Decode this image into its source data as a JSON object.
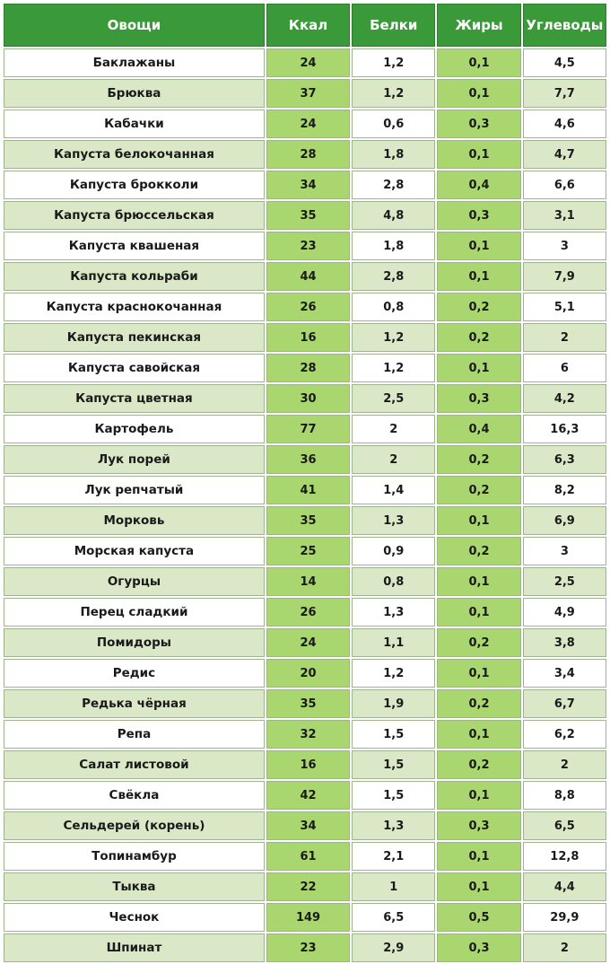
{
  "headers": [
    "Овощи",
    "Ккал",
    "Белки",
    "Жиры",
    "Углеводы"
  ],
  "rows": [
    [
      "Баклажаны",
      "24",
      "1,2",
      "0,1",
      "4,5"
    ],
    [
      "Брюква",
      "37",
      "1,2",
      "0,1",
      "7,7"
    ],
    [
      "Кабачки",
      "24",
      "0,6",
      "0,3",
      "4,6"
    ],
    [
      "Капуста белокочанная",
      "28",
      "1,8",
      "0,1",
      "4,7"
    ],
    [
      "Капуста брокколи",
      "34",
      "2,8",
      "0,4",
      "6,6"
    ],
    [
      "Капуста брюссельская",
      "35",
      "4,8",
      "0,3",
      "3,1"
    ],
    [
      "Капуста квашеная",
      "23",
      "1,8",
      "0,1",
      "3"
    ],
    [
      "Капуста кольраби",
      "44",
      "2,8",
      "0,1",
      "7,9"
    ],
    [
      "Капуста краснокочанная",
      "26",
      "0,8",
      "0,2",
      "5,1"
    ],
    [
      "Капуста пекинская",
      "16",
      "1,2",
      "0,2",
      "2"
    ],
    [
      "Капуста савойская",
      "28",
      "1,2",
      "0,1",
      "6"
    ],
    [
      "Капуста цветная",
      "30",
      "2,5",
      "0,3",
      "4,2"
    ],
    [
      "Картофель",
      "77",
      "2",
      "0,4",
      "16,3"
    ],
    [
      "Лук порей",
      "36",
      "2",
      "0,2",
      "6,3"
    ],
    [
      "Лук репчатый",
      "41",
      "1,4",
      "0,2",
      "8,2"
    ],
    [
      "Морковь",
      "35",
      "1,3",
      "0,1",
      "6,9"
    ],
    [
      "Морская капуста",
      "25",
      "0,9",
      "0,2",
      "3"
    ],
    [
      "Огурцы",
      "14",
      "0,8",
      "0,1",
      "2,5"
    ],
    [
      "Перец сладкий",
      "26",
      "1,3",
      "0,1",
      "4,9"
    ],
    [
      "Помидоры",
      "24",
      "1,1",
      "0,2",
      "3,8"
    ],
    [
      "Редис",
      "20",
      "1,2",
      "0,1",
      "3,4"
    ],
    [
      "Редька чёрная",
      "35",
      "1,9",
      "0,2",
      "6,7"
    ],
    [
      "Репа",
      "32",
      "1,5",
      "0,1",
      "6,2"
    ],
    [
      "Салат листовой",
      "16",
      "1,5",
      "0,2",
      "2"
    ],
    [
      "Свёкла",
      "42",
      "1,5",
      "0,1",
      "8,8"
    ],
    [
      "Сельдерей (корень)",
      "34",
      "1,3",
      "0,3",
      "6,5"
    ],
    [
      "Топинамбур",
      "61",
      "2,1",
      "0,1",
      "12,8"
    ],
    [
      "Тыква",
      "22",
      "1",
      "0,1",
      "4,4"
    ],
    [
      "Чеснок",
      "149",
      "6,5",
      "0,5",
      "29,9"
    ],
    [
      "Шпинат",
      "23",
      "2,9",
      "0,3",
      "2"
    ]
  ],
  "colors": {
    "header_bg": "#3a9a3a",
    "highlight_col": "#a9d66f",
    "row_alt": "#dbe8c7",
    "row_base": "#ffffff"
  }
}
